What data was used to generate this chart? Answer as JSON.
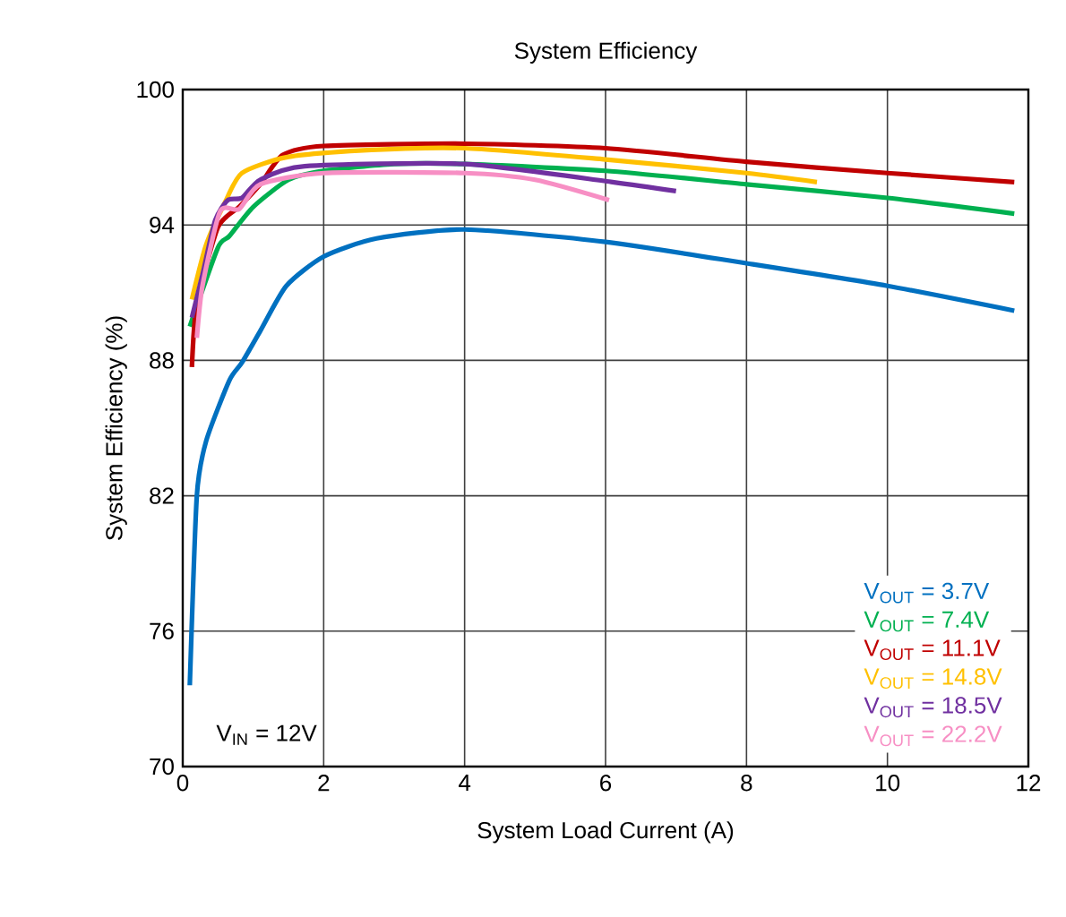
{
  "chart_data": {
    "type": "line",
    "title": "System Efficiency",
    "xlabel": "System Load Current (A)",
    "ylabel": "System Efficiency (%)",
    "xlim": [
      0,
      12
    ],
    "xticks": [
      0,
      2,
      4,
      6,
      8,
      10,
      12
    ],
    "ylim": [
      70,
      100
    ],
    "yticks": [
      70,
      76,
      82,
      88,
      94,
      100
    ],
    "grid": true,
    "legend": "bottom right",
    "line_style": "solid",
    "annotations": [
      "V$_{IN}$ = 12V"
    ],
    "series": [
      {
        "name": "V$_{OUT}$ = 3.7V",
        "color": "#0070c0",
        "x": [
          0.1,
          0.2,
          0.33,
          0.66,
          0.84,
          1.1,
          1.47,
          2,
          2.75,
          4,
          6,
          8,
          10,
          11.8
        ],
        "values": [
          73.6,
          82,
          84.4,
          87.1,
          87.9,
          89.3,
          91.3,
          92.6,
          93.4,
          93.8,
          93.25,
          92.3,
          91.3,
          90.2
        ]
      },
      {
        "name": "V$_{OUT}$ = 7.4V",
        "color": "#00b050",
        "x": [
          0.1,
          0.5,
          0.66,
          1.0,
          1.5,
          2,
          3,
          4,
          6,
          8,
          10,
          11.8
        ],
        "values": [
          89.5,
          93.0,
          93.5,
          94.8,
          96.0,
          96.4,
          96.7,
          96.7,
          96.4,
          95.8,
          95.2,
          94.5
        ]
      },
      {
        "name": "V$_{OUT}$ = 11.1V",
        "color": "#c00000",
        "x": [
          0.13,
          0.2,
          0.5,
          0.8,
          1.1,
          1.42,
          2,
          4,
          6,
          8,
          10,
          11.8
        ],
        "values": [
          87.7,
          90.5,
          93.9,
          94.8,
          95.8,
          97.1,
          97.5,
          97.6,
          97.4,
          96.8,
          96.3,
          95.9
        ]
      },
      {
        "name": "V$_{OUT}$ = 14.8V",
        "color": "#ffc000",
        "x": [
          0.13,
          0.33,
          0.6,
          0.84,
          1.47,
          2.5,
          4,
          6,
          8,
          9.0
        ],
        "values": [
          90.7,
          93.1,
          95.0,
          96.3,
          97.0,
          97.3,
          97.4,
          96.9,
          96.3,
          95.9
        ]
      },
      {
        "name": "V$_{OUT}$ = 18.5V",
        "color": "#7030a0",
        "x": [
          0.13,
          0.28,
          0.46,
          0.64,
          0.84,
          1.1,
          1.73,
          4,
          6.1,
          7.0
        ],
        "values": [
          89.9,
          91.8,
          94.2,
          95.1,
          95.2,
          96.0,
          96.6,
          96.7,
          95.9,
          95.5
        ]
      },
      {
        "name": "V$_{OUT}$ = 22.2V",
        "color": "#f78fc4",
        "x": [
          0.2,
          0.28,
          0.53,
          0.8,
          1.1,
          2,
          4,
          5,
          6.05
        ],
        "values": [
          89.0,
          91.3,
          94.6,
          94.7,
          95.8,
          96.3,
          96.3,
          96.0,
          95.1
        ]
      }
    ]
  }
}
